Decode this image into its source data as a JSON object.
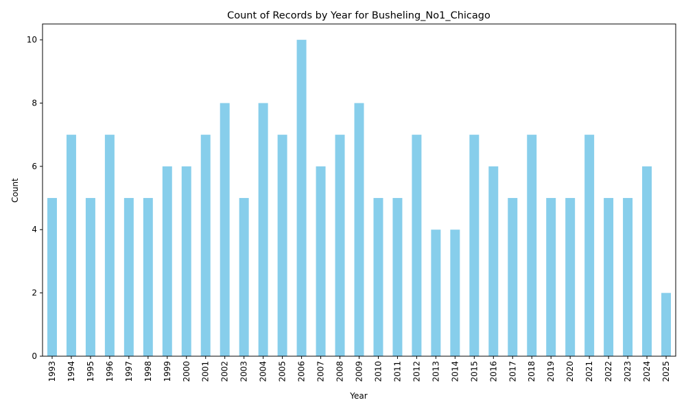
{
  "chart_data": {
    "type": "bar",
    "title": "Count of Records by Year for Busheling_No1_Chicago",
    "xlabel": "Year",
    "ylabel": "Count",
    "categories": [
      "1993",
      "1994",
      "1995",
      "1996",
      "1997",
      "1998",
      "1999",
      "2000",
      "2001",
      "2002",
      "2003",
      "2004",
      "2005",
      "2006",
      "2007",
      "2008",
      "2009",
      "2010",
      "2011",
      "2012",
      "2013",
      "2014",
      "2015",
      "2016",
      "2017",
      "2018",
      "2019",
      "2020",
      "2021",
      "2022",
      "2023",
      "2024",
      "2025"
    ],
    "values": [
      5,
      7,
      5,
      7,
      5,
      5,
      6,
      6,
      7,
      8,
      5,
      8,
      7,
      10,
      6,
      7,
      8,
      5,
      5,
      7,
      4,
      4,
      7,
      6,
      5,
      7,
      5,
      5,
      7,
      5,
      5,
      6,
      2
    ],
    "ylim": [
      0,
      10.5
    ],
    "yticks": [
      0,
      2,
      4,
      6,
      8,
      10
    ],
    "grid": false,
    "bar_color": "#87ceeb"
  }
}
